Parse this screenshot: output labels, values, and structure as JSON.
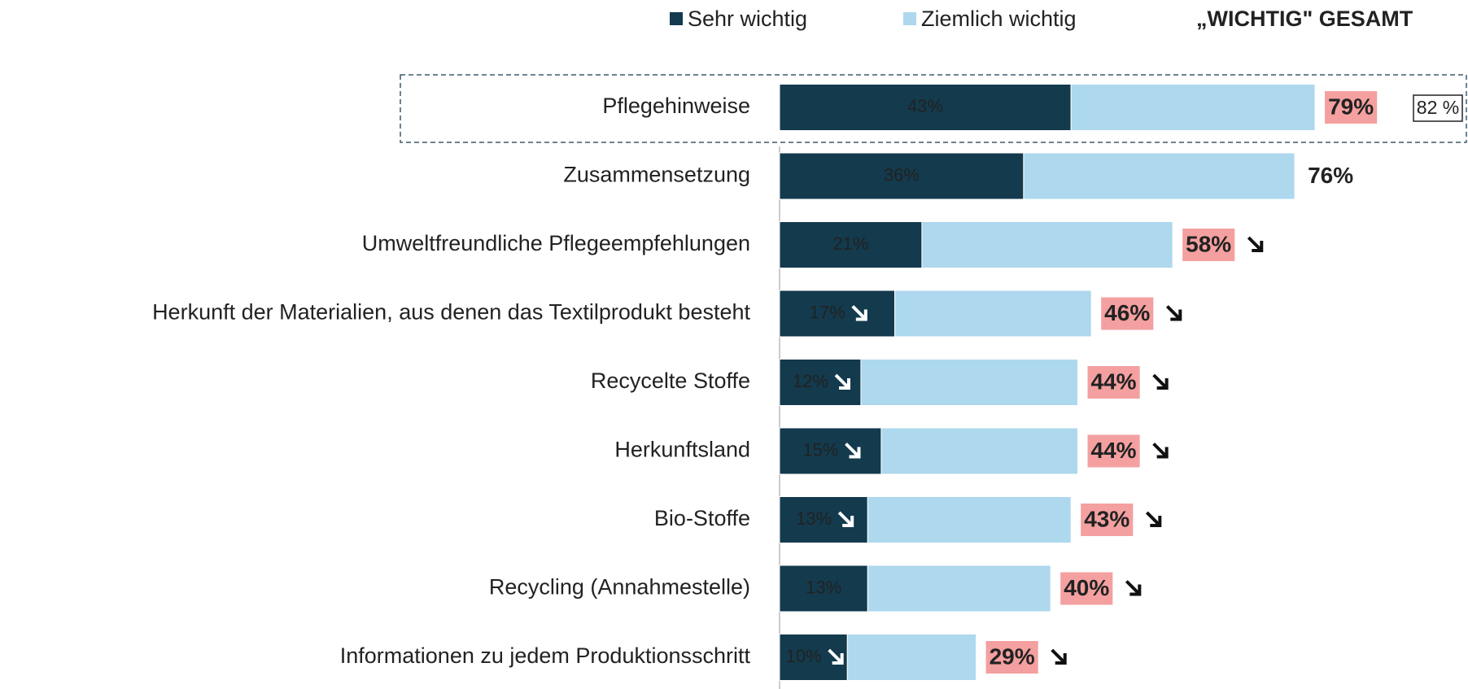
{
  "chart_data": {
    "type": "stacked_bar_horizontal",
    "categories": [
      "Pflegehinweise",
      "Zusammensetzung",
      "Umweltfreundliche Pflegeempfehlungen",
      "Herkunft der Materialien, aus denen das Textilprodukt besteht",
      "Recycelte Stoffe",
      "Herkunftsland",
      "Bio-Stoffe",
      "Recycling (Annahmestelle)",
      "Informationen zu jedem Produktionsschritt"
    ],
    "series": [
      {
        "name": "Sehr wichtig",
        "color": "#133a4d",
        "values": [
          43,
          36,
          21,
          17,
          12,
          15,
          13,
          13,
          10
        ],
        "value_labels": [
          "43%",
          "36%",
          "21%",
          "17%",
          "12%",
          "15%",
          "13%",
          "13%",
          "10%"
        ],
        "decline": [
          false,
          false,
          false,
          true,
          true,
          true,
          true,
          false,
          true
        ]
      },
      {
        "name": "Ziemlich wichtig",
        "color": "#add8ee",
        "values": [
          36,
          40,
          37,
          29,
          32,
          29,
          30,
          27,
          19
        ]
      }
    ],
    "total_title": "„WICHTIG\" GESAMT",
    "totals": [
      79,
      76,
      58,
      46,
      44,
      44,
      43,
      40,
      29
    ],
    "total_labels": [
      "79%",
      "76%",
      "58%",
      "46%",
      "44%",
      "44%",
      "43%",
      "40%",
      "29%"
    ],
    "total_highlight": [
      true,
      false,
      true,
      true,
      true,
      true,
      true,
      true,
      true
    ],
    "total_highlight_color": "#f4a0a0",
    "total_decline": [
      false,
      false,
      true,
      true,
      true,
      true,
      true,
      true,
      true
    ],
    "annotation": "82 %",
    "xlim": [
      0,
      100
    ]
  }
}
